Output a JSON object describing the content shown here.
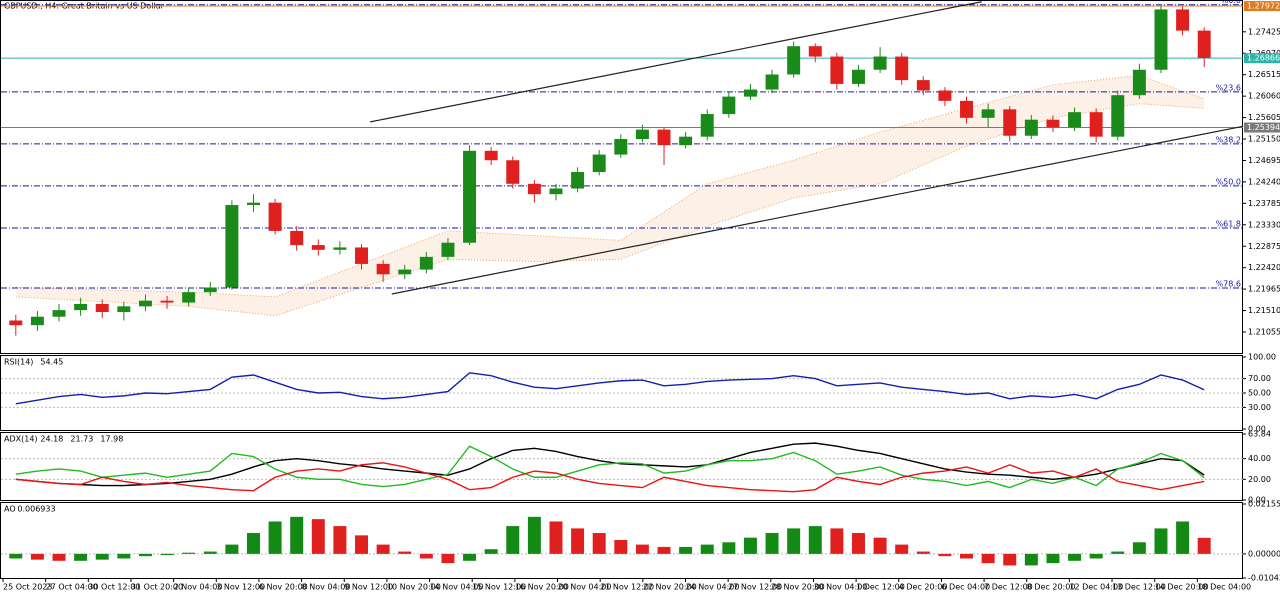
{
  "chart_data": [
    {
      "type": "candlestick",
      "title": "GBPUSD., H4: Great Britain vs US Dollar",
      "open": [
        1.213,
        1.212,
        1.2138,
        1.2152,
        1.2165,
        1.2148,
        1.216,
        1.2172,
        1.2168,
        1.219,
        1.22,
        1.2375,
        1.238,
        1.232,
        1.229,
        1.228,
        1.2285,
        1.225,
        1.2228,
        1.2238,
        1.2265,
        1.2295,
        1.249,
        1.247,
        1.242,
        1.2398,
        1.241,
        1.2445,
        1.2482,
        1.2515,
        1.2535,
        1.2502,
        1.252,
        1.2568,
        1.2605,
        1.262,
        1.2652,
        1.2712,
        1.269,
        1.2632,
        1.2662,
        1.269,
        1.264,
        1.2618,
        1.2596,
        1.256,
        1.2578,
        1.2522,
        1.2556,
        1.254,
        1.2572,
        1.252,
        1.2608,
        1.2662,
        1.279,
        1.2745
      ],
      "high": [
        1.2142,
        1.215,
        1.2165,
        1.2178,
        1.2175,
        1.217,
        1.2185,
        1.2182,
        1.22,
        1.2212,
        1.2385,
        1.2398,
        1.2388,
        1.233,
        1.2302,
        1.2298,
        1.2292,
        1.2258,
        1.2248,
        1.2275,
        1.2305,
        1.2502,
        1.2498,
        1.2478,
        1.2428,
        1.242,
        1.2455,
        1.2492,
        1.2525,
        1.2545,
        1.254,
        1.253,
        1.2578,
        1.2615,
        1.2632,
        1.2662,
        1.2722,
        1.2718,
        1.2698,
        1.2672,
        1.271,
        1.2698,
        1.2648,
        1.2625,
        1.2605,
        1.259,
        1.2585,
        1.2566,
        1.2565,
        1.2582,
        1.258,
        1.2618,
        1.2675,
        1.2797,
        1.2796,
        1.2752
      ],
      "low": [
        1.2098,
        1.2108,
        1.2128,
        1.214,
        1.2135,
        1.213,
        1.215,
        1.2155,
        1.216,
        1.2182,
        1.2195,
        1.236,
        1.2312,
        1.2278,
        1.2268,
        1.227,
        1.2238,
        1.2212,
        1.2218,
        1.223,
        1.2258,
        1.229,
        1.246,
        1.241,
        1.238,
        1.2385,
        1.2402,
        1.2438,
        1.2475,
        1.2508,
        1.246,
        1.2495,
        1.2512,
        1.256,
        1.2598,
        1.2612,
        1.2645,
        1.2678,
        1.262,
        1.2625,
        1.2655,
        1.263,
        1.2608,
        1.2585,
        1.2548,
        1.254,
        1.251,
        1.2515,
        1.253,
        1.2532,
        1.2508,
        1.2512,
        1.26,
        1.2655,
        1.2735,
        1.2668
      ],
      "close": [
        1.212,
        1.2138,
        1.2152,
        1.2165,
        1.2148,
        1.216,
        1.2172,
        1.2168,
        1.219,
        1.22,
        1.2375,
        1.238,
        1.232,
        1.229,
        1.228,
        1.2285,
        1.225,
        1.2228,
        1.2238,
        1.2265,
        1.2295,
        1.249,
        1.247,
        1.242,
        1.2398,
        1.241,
        1.2445,
        1.2482,
        1.2515,
        1.2535,
        1.2502,
        1.252,
        1.2568,
        1.2605,
        1.262,
        1.2652,
        1.2712,
        1.269,
        1.2632,
        1.2662,
        1.269,
        1.264,
        1.2618,
        1.2596,
        1.256,
        1.2578,
        1.2522,
        1.2556,
        1.254,
        1.2572,
        1.252,
        1.2608,
        1.2662,
        1.279,
        1.2745,
        1.2687
      ],
      "up_color": "#1a8a1a",
      "down_color": "#e0201f",
      "ylim": [
        1.2061,
        1.281
      ],
      "yticks": [
        {
          "value": 1.27425,
          "label": "1.27425"
        },
        {
          "value": 1.2697,
          "label": "1.26970"
        },
        {
          "value": 1.26515,
          "label": "1.26515"
        },
        {
          "value": 1.2606,
          "label": "1.26060"
        },
        {
          "value": 1.25605,
          "label": "1.25605"
        },
        {
          "value": 1.2515,
          "label": "1.25150"
        },
        {
          "value": 1.24695,
          "label": "1.24695"
        },
        {
          "value": 1.2424,
          "label": "1.24240"
        },
        {
          "value": 1.23785,
          "label": "1.23785"
        },
        {
          "value": 1.2333,
          "label": "1.23330"
        },
        {
          "value": 1.22875,
          "label": "1.22875"
        },
        {
          "value": 1.2242,
          "label": "1.22420"
        },
        {
          "value": 1.21965,
          "label": "1.21965"
        },
        {
          "value": 1.2151,
          "label": "1.21510"
        },
        {
          "value": 1.21055,
          "label": "1.21055"
        }
      ],
      "levels": [
        {
          "value": 1.27972,
          "color": "#e07b20"
        },
        {
          "value": 1.26866,
          "color": "#2bb5a8"
        },
        {
          "value": 1.25394,
          "color": "#7a7a7a"
        }
      ],
      "fib_levels": [
        {
          "value": 1.28,
          "label": "%0.0"
        },
        {
          "value": 1.26151,
          "label": "%23.6"
        },
        {
          "value": 1.25047,
          "label": "%38.2"
        },
        {
          "value": 1.24155,
          "label": "%50.0"
        },
        {
          "value": 1.23263,
          "label": "%61.8"
        },
        {
          "value": 1.21989,
          "label": "%78.6"
        }
      ],
      "trendlines": [
        {
          "x": [
            16.4,
            44.7
          ],
          "y": [
            1.25514,
            1.28063
          ]
        },
        {
          "x": [
            17.4,
            56.8
          ],
          "y": [
            1.21862,
            1.2542
          ]
        }
      ],
      "cloud": {
        "color": "#f0a060",
        "x": [
          0,
          4,
          8,
          12,
          16,
          20,
          24,
          28,
          32,
          36,
          40,
          44,
          48,
          52,
          55
        ],
        "upper": [
          1.22,
          1.2195,
          1.219,
          1.218,
          1.225,
          1.232,
          1.231,
          1.23,
          1.242,
          1.247,
          1.253,
          1.258,
          1.263,
          1.265,
          1.26
        ],
        "lower": [
          1.218,
          1.217,
          1.216,
          1.214,
          1.22,
          1.226,
          1.2255,
          1.226,
          1.233,
          1.239,
          1.242,
          1.25,
          1.256,
          1.259,
          1.258
        ]
      },
      "xlabels": [
        "25 Oct 2023",
        "27 Oct 04:00",
        "30 Oct 12:00",
        "31 Oct 20:00",
        "2 Nov 04:00",
        "3 Nov 12:00",
        "6 Nov 20:00",
        "8 Nov 04:00",
        "9 Nov 12:00",
        "10 Nov 20:00",
        "14 Nov 04:00",
        "15 Nov 12:00",
        "16 Nov 20:00",
        "20 Nov 04:00",
        "21 Nov 12:00",
        "22 Nov 20:00",
        "24 Nov 04:00",
        "27 Nov 12:00",
        "28 Nov 20:00",
        "30 Nov 04:00",
        "1 Dec 12:00",
        "4 Dec 20:00",
        "6 Dec 04:00",
        "7 Dec 12:00",
        "8 Dec 20:00",
        "12 Dec 04:00",
        "13 Dec 12:00",
        "14 Dec 20:00",
        "18 Dec 04:00"
      ]
    },
    {
      "type": "line",
      "title": "RSI(14)",
      "ylim": [
        0,
        100
      ],
      "yticks": [
        {
          "value": 100,
          "label": "100.00"
        },
        {
          "value": 70,
          "label": "70.00"
        },
        {
          "value": 50,
          "label": "50.00"
        },
        {
          "value": 30,
          "label": "30.00"
        },
        {
          "value": 0,
          "label": "0.00"
        }
      ],
      "series": [
        {
          "name": "RSI",
          "color": "#1020b0",
          "values": [
            35,
            40,
            45,
            48,
            44,
            46,
            50,
            49,
            52,
            55,
            72,
            75,
            65,
            55,
            50,
            51,
            45,
            42,
            44,
            48,
            52,
            78,
            74,
            65,
            58,
            56,
            60,
            64,
            67,
            68,
            60,
            62,
            66,
            68,
            69,
            70,
            74,
            70,
            60,
            62,
            64,
            58,
            55,
            52,
            48,
            50,
            42,
            46,
            44,
            48,
            42,
            55,
            62,
            75,
            68,
            54.45
          ]
        }
      ]
    },
    {
      "type": "line",
      "title": "ADX(14)",
      "ylim": [
        0,
        63.84
      ],
      "yticks": [
        {
          "value": 63.84,
          "label": "63.84"
        },
        {
          "value": 40,
          "label": "40.00"
        },
        {
          "value": 20,
          "label": "20.00"
        },
        {
          "value": 0,
          "label": "0.00"
        }
      ],
      "series": [
        {
          "name": "ADX",
          "color": "#000000",
          "values": [
            20,
            18,
            16,
            15,
            14,
            14,
            15,
            16,
            18,
            20,
            25,
            32,
            38,
            40,
            38,
            35,
            33,
            30,
            28,
            26,
            24,
            30,
            40,
            48,
            50,
            47,
            42,
            38,
            35,
            34,
            33,
            32,
            34,
            40,
            46,
            50,
            54,
            55,
            52,
            48,
            45,
            40,
            35,
            30,
            27,
            25,
            24,
            22,
            20,
            22,
            25,
            30,
            35,
            40,
            38,
            24.18
          ]
        },
        {
          "name": "+DI",
          "color": "#22bb22",
          "values": [
            25,
            28,
            30,
            28,
            22,
            24,
            26,
            22,
            25,
            28,
            45,
            42,
            30,
            22,
            20,
            20,
            15,
            13,
            15,
            20,
            25,
            52,
            42,
            30,
            22,
            22,
            28,
            34,
            36,
            35,
            26,
            28,
            34,
            38,
            38,
            40,
            46,
            38,
            25,
            28,
            32,
            24,
            20,
            18,
            14,
            18,
            12,
            20,
            16,
            22,
            14,
            30,
            36,
            45,
            38,
            21.73
          ]
        },
        {
          "name": "-DI",
          "color": "#ee1111",
          "values": [
            20,
            18,
            16,
            15,
            22,
            18,
            15,
            17,
            14,
            12,
            10,
            9,
            22,
            28,
            30,
            28,
            34,
            36,
            32,
            26,
            20,
            10,
            12,
            22,
            28,
            26,
            20,
            16,
            14,
            12,
            22,
            18,
            14,
            12,
            10,
            9,
            8,
            10,
            22,
            18,
            15,
            22,
            26,
            28,
            32,
            26,
            34,
            26,
            28,
            22,
            30,
            18,
            14,
            10,
            14,
            17.98
          ]
        }
      ]
    },
    {
      "type": "histogram",
      "title": "AO",
      "ylim": [
        -0.010434,
        0.021551
      ],
      "yticks": [
        {
          "value": 0.021551,
          "label": "0.021551"
        },
        {
          "value": 0,
          "label": "0.000000"
        },
        {
          "value": -0.010434,
          "label": "-0.010434"
        }
      ],
      "up_color": "#138a13",
      "down_color": "#e0201f",
      "values": [
        -0.002,
        -0.0025,
        -0.003,
        -0.003,
        -0.0025,
        -0.002,
        -0.001,
        -0.0005,
        0.0005,
        0.001,
        0.004,
        0.009,
        0.014,
        0.016,
        0.015,
        0.012,
        0.008,
        0.004,
        0.001,
        -0.002,
        -0.004,
        -0.003,
        0.002,
        0.012,
        0.016,
        0.014,
        0.011,
        0.009,
        0.006,
        0.004,
        0.003,
        0.003,
        0.004,
        0.005,
        0.007,
        0.009,
        0.011,
        0.012,
        0.011,
        0.009,
        0.007,
        0.004,
        0.001,
        -0.001,
        -0.002,
        -0.004,
        -0.005,
        -0.005,
        -0.004,
        -0.003,
        -0.002,
        0.001,
        0.005,
        0.011,
        0.014,
        0.006933
      ]
    }
  ]
}
